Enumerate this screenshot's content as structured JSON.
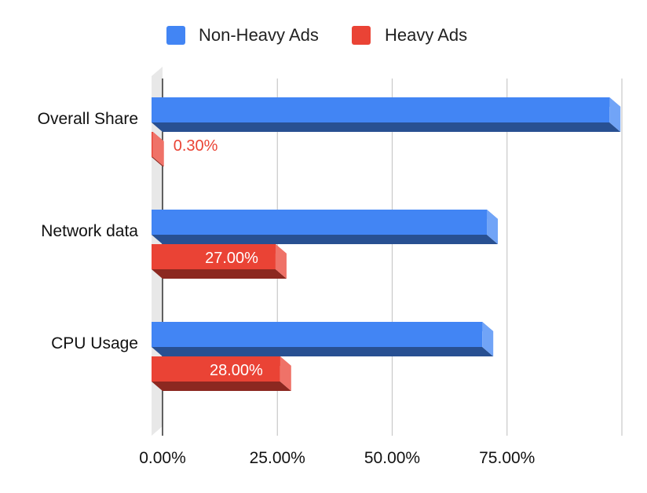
{
  "chart_data": {
    "type": "bar",
    "orientation": "horizontal",
    "style": "3d",
    "categories": [
      "Overall Share",
      "Network data",
      "CPU Usage"
    ],
    "series": [
      {
        "name": "Non-Heavy Ads",
        "color": "#4285f4",
        "values": [
          99.7,
          73.0,
          72.0
        ],
        "labels": [
          "",
          "",
          ""
        ]
      },
      {
        "name": "Heavy Ads",
        "color": "#ea4335",
        "values": [
          0.3,
          27.0,
          28.0
        ],
        "labels": [
          "0.30%",
          "27.00%",
          "28.00%"
        ]
      }
    ],
    "xlim": [
      0,
      100
    ],
    "xticks": [
      0,
      25,
      50,
      75
    ],
    "xtick_labels": [
      "0.00%",
      "25.00%",
      "50.00%",
      "75.00%"
    ],
    "grid": true,
    "legend": "top-center"
  }
}
